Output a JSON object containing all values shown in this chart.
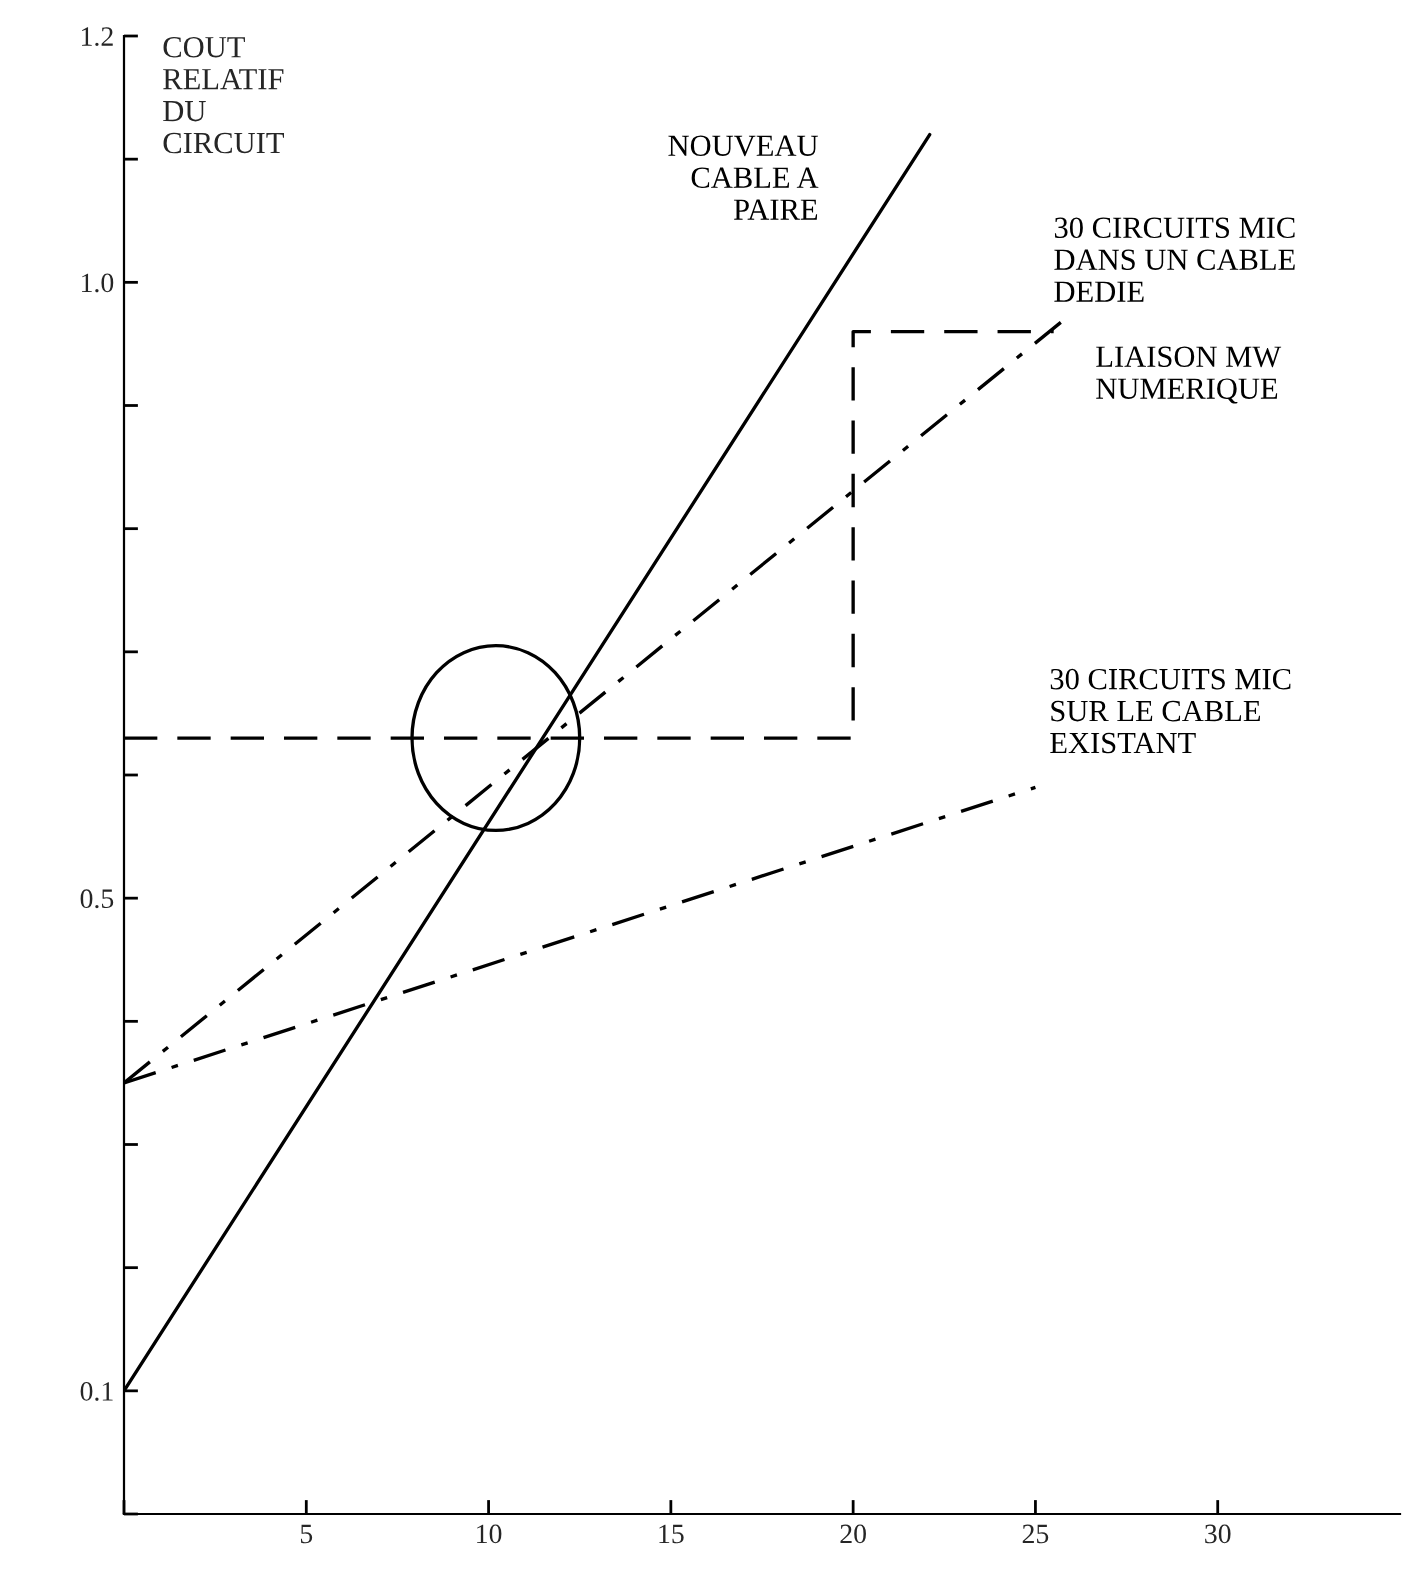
{
  "chart_data": {
    "type": "line",
    "ylabel": "COUT RELATIF DU CIRCUIT",
    "xlim": [
      0,
      35
    ],
    "ylim": [
      0,
      1.2
    ],
    "xticks": [
      {
        "value": 0,
        "label": null
      },
      5,
      10,
      15,
      20,
      25,
      30
    ],
    "yticks": [
      {
        "value": 0.0,
        "label": null
      },
      0.1,
      {
        "value": 0.2,
        "label": null
      },
      {
        "value": 0.3,
        "label": null
      },
      {
        "value": 0.4,
        "label": null
      },
      0.5,
      {
        "value": 0.6,
        "label": null
      },
      {
        "value": 0.7,
        "label": null
      },
      {
        "value": 0.8,
        "label": null
      },
      {
        "value": 0.9,
        "label": null
      },
      {
        "value": 1.0,
        "label": "1.0"
      },
      {
        "value": 1.1,
        "label": null
      },
      1.2
    ],
    "grid": false,
    "legend": false,
    "series": [
      {
        "name": "NOUVEAU\nCABLE A\nPAIRE",
        "color": "#000000",
        "line_style": "solid",
        "x": [
          0,
          22.1
        ],
        "values": [
          0.1,
          1.12
        ]
      },
      {
        "name": "30 CIRCUITS MIC\nDANS UN CABLE\nDEDIE",
        "color": "#000000",
        "line_style": "dashdot",
        "x": [
          0,
          25.8
        ],
        "values": [
          0.35,
          0.97
        ]
      },
      {
        "name": "LIAISON MW\nNUMERIQUE",
        "color": "#000000",
        "line_style": "dashed",
        "x": [
          0,
          20,
          20,
          25.5
        ],
        "values": [
          0.63,
          0.63,
          0.96,
          0.96
        ]
      },
      {
        "name": "30 CIRCUITS MIC\nSUR LE CABLE\nEXISTANT",
        "color": "#000000",
        "line_style": "dashdot",
        "x": [
          0,
          25
        ],
        "values": [
          0.35,
          0.59
        ]
      }
    ]
  }
}
